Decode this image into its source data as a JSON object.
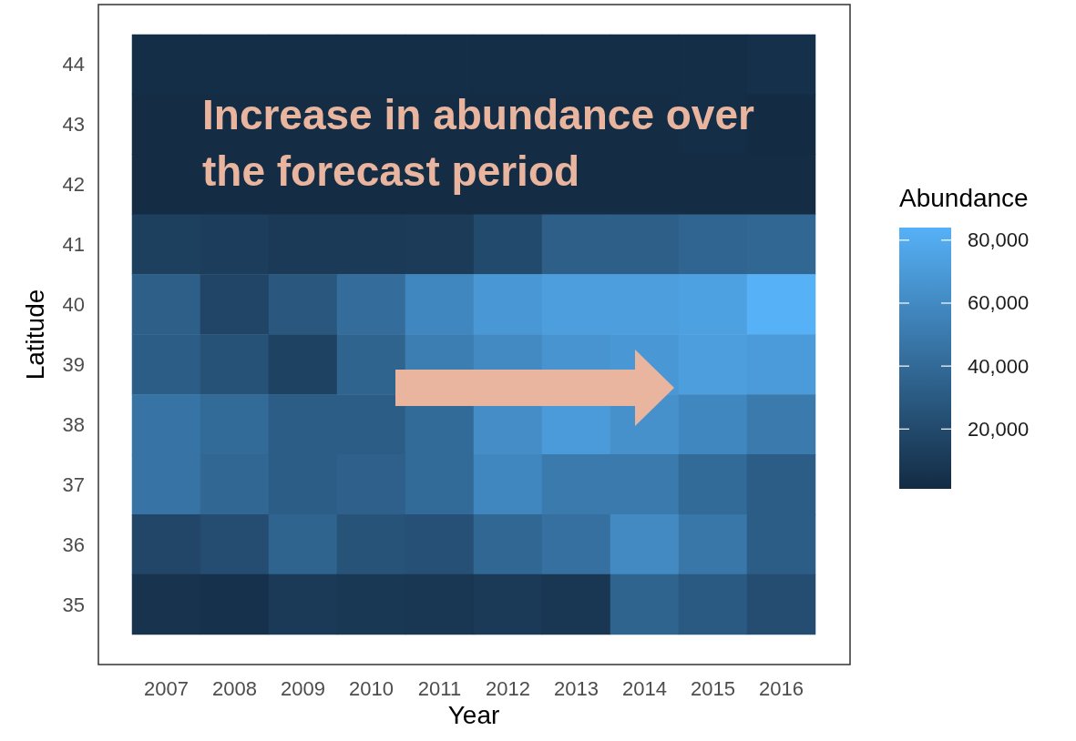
{
  "chart_data": {
    "type": "heatmap",
    "xlabel": "Year",
    "ylabel": "Latitude",
    "clabel": "Abundance",
    "annotations": [
      "Increase in abundance over the forecast period"
    ],
    "categories": [
      "2007",
      "2008",
      "2009",
      "2010",
      "2011",
      "2012",
      "2013",
      "2014",
      "2015",
      "2016"
    ],
    "y_categories": [
      "44",
      "43",
      "42",
      "41",
      "40",
      "39",
      "38",
      "37",
      "36",
      "35"
    ],
    "cells": [
      [
        3000,
        3000,
        3000,
        3000,
        3000,
        3000,
        3000,
        3000,
        3000,
        4000
      ],
      [
        2000,
        2000,
        2000,
        2000,
        2000,
        2000,
        2000,
        2000,
        3000,
        1500
      ],
      [
        2000,
        2000,
        2000,
        2000,
        2000,
        2000,
        2000,
        2000,
        2000,
        2000
      ],
      [
        14000,
        12000,
        10000,
        10000,
        11000,
        20000,
        33000,
        33000,
        37000,
        38000
      ],
      [
        33000,
        17000,
        28000,
        42000,
        58000,
        68000,
        72000,
        72000,
        74000,
        84000
      ],
      [
        32000,
        25000,
        15000,
        36000,
        52000,
        60000,
        66000,
        68000,
        72000,
        70000
      ],
      [
        46000,
        40000,
        32000,
        32000,
        40000,
        62000,
        70000,
        64000,
        58000,
        50000
      ],
      [
        46000,
        38000,
        32000,
        34000,
        40000,
        58000,
        50000,
        50000,
        40000,
        32000
      ],
      [
        18000,
        22000,
        36000,
        26000,
        24000,
        38000,
        44000,
        60000,
        48000,
        32000
      ],
      [
        6000,
        5000,
        10000,
        9000,
        8000,
        10000,
        8000,
        36000,
        30000,
        22000
      ]
    ],
    "clim": [
      1000,
      84000
    ],
    "cticks": [
      {
        "value": 20000,
        "label": "20,000"
      },
      {
        "value": 40000,
        "label": "40,000"
      },
      {
        "value": 60000,
        "label": "60,000"
      },
      {
        "value": 80000,
        "label": "80,000"
      }
    ]
  }
}
